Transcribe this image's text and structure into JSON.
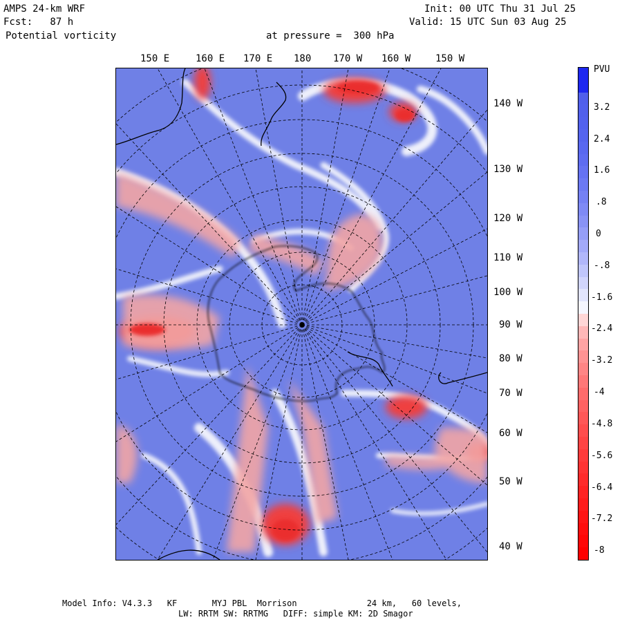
{
  "header": {
    "model": "AMPS 24-km WRF",
    "forecast": "Fcst:   87 h",
    "field": "Potential vorticity",
    "level": "at pressure =  300 hPa",
    "init": "Init: 00 UTC Thu 31 Jul 25",
    "valid": "Valid: 15 UTC Sun 03 Aug 25"
  },
  "map": {
    "top_lon_labels": [
      "150 E",
      "160 E",
      "170 E",
      "180",
      "170 W",
      "160 W",
      "150 W"
    ],
    "right_lon_labels": [
      "140 W",
      "130 W",
      "120 W",
      "110 W",
      "100 W",
      "90 W",
      "80 W",
      "70 W",
      "60 W",
      "50 W",
      "40 W"
    ],
    "colors": {
      "positive_blue": "#6d7fe6",
      "negative_red": "#ee3b3b",
      "coast": "#000000"
    }
  },
  "colorbar": {
    "unit": "PVU",
    "labels": [
      "3.2",
      "2.4",
      "1.6",
      ".8",
      "0",
      "-.8",
      "-1.6",
      "-2.4",
      "-3.2",
      "-4",
      "-4.8",
      "-5.6",
      "-6.4",
      "-7.2",
      "-8"
    ]
  },
  "footer": {
    "line1": "Model Info: V4.3.3   KF       MYJ PBL  Morrison              24 km,   60 levels,",
    "line2": "LW: RRTM SW: RRTMG   DIFF: simple KM: 2D Smagor"
  }
}
